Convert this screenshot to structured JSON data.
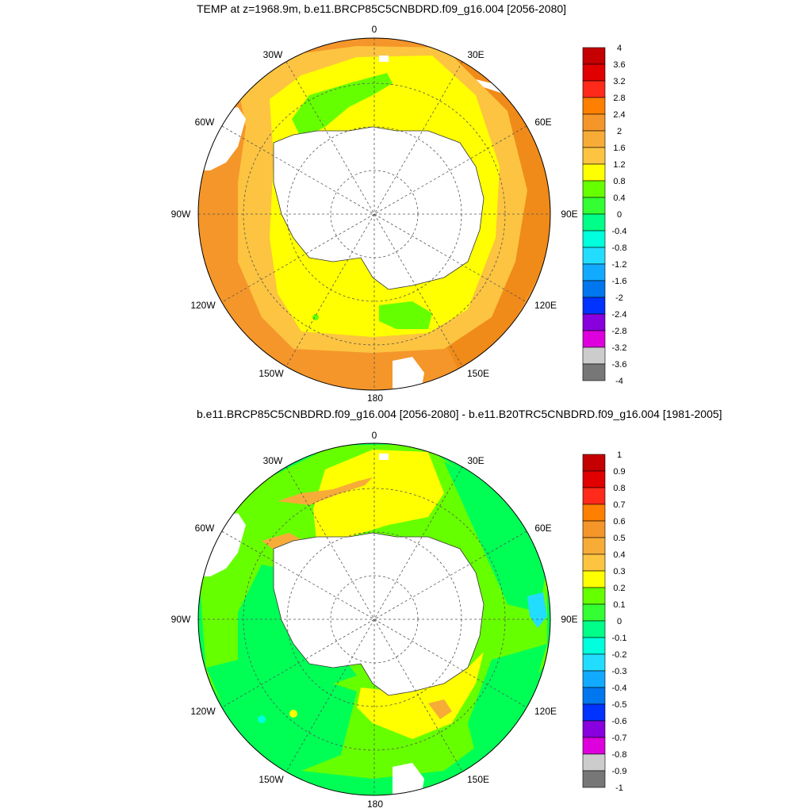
{
  "panels": [
    {
      "title": "TEMP at z=1968.9m, b.e11.BRCP85C5CNBDRD.f09_g16.004 [2056-2080]",
      "lon_labels": {
        "0": "0",
        "30E": "30E",
        "60E": "60E",
        "90E": "90E",
        "120E": "120E",
        "150E": "150E",
        "180": "180",
        "150W": "150W",
        "120W": "120W",
        "90W": "90W",
        "60W": "60W",
        "30W": "30W"
      },
      "colorbar": {
        "labels": [
          "4",
          "3.6",
          "3.2",
          "2.8",
          "2.4",
          "2",
          "1.6",
          "1.2",
          "0.8",
          "0.4",
          "0",
          "-0.4",
          "-0.8",
          "-1.2",
          "-1.6",
          "-2",
          "-2.4",
          "-2.8",
          "-3.2",
          "-3.6",
          "-4"
        ],
        "colors": [
          "#c40000",
          "#e00000",
          "#ff2a1a",
          "#ff7f00",
          "#f5962a",
          "#f7ac38",
          "#fcc440",
          "#ffff00",
          "#66ff00",
          "#33ff33",
          "#00ff88",
          "#00ffdd",
          "#22ddff",
          "#11aaff",
          "#0077ee",
          "#0033ff",
          "#8800dd",
          "#dd00dd",
          "#cccccc",
          "#777777"
        ]
      }
    },
    {
      "title": "b.e11.BRCP85C5CNBDRD.f09_g16.004 [2056-2080] - b.e11.B20TRC5CNBDRD.f09_g16.004 [1981-2005]",
      "lon_labels": {
        "0": "0",
        "30E": "30E",
        "60E": "60E",
        "90E": "90E",
        "120E": "120E",
        "150E": "150E",
        "180": "180",
        "150W": "150W",
        "120W": "120W",
        "90W": "90W",
        "60W": "60W",
        "30W": "30W"
      },
      "colorbar": {
        "labels": [
          "1",
          "0.9",
          "0.8",
          "0.7",
          "0.6",
          "0.5",
          "0.4",
          "0.3",
          "0.2",
          "0.1",
          "0",
          "-0.1",
          "-0.2",
          "-0.3",
          "-0.4",
          "-0.5",
          "-0.6",
          "-0.7",
          "-0.8",
          "-0.9",
          "-1"
        ],
        "colors": [
          "#c40000",
          "#e00000",
          "#ff2a1a",
          "#ff7f00",
          "#f5962a",
          "#f7ac38",
          "#fcc440",
          "#ffff00",
          "#66ff00",
          "#33ff33",
          "#00ff88",
          "#00ffdd",
          "#22ddff",
          "#11aaff",
          "#0077ee",
          "#0033ff",
          "#8800dd",
          "#dd00dd",
          "#cccccc",
          "#777777"
        ]
      }
    }
  ]
}
